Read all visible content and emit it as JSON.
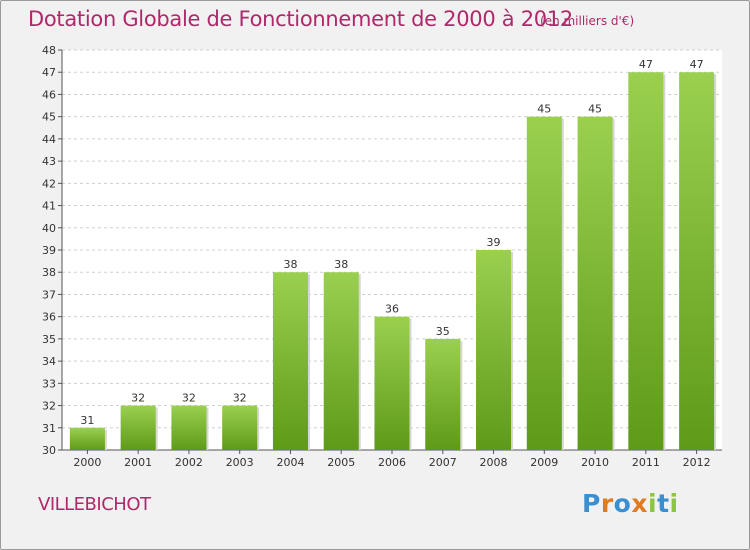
{
  "chart_data": {
    "type": "bar",
    "title": "Dotation Globale de Fonctionnement de 2000 à 2012",
    "subtitle": "(en milliers d'€)",
    "categories": [
      "2000",
      "2001",
      "2002",
      "2003",
      "2004",
      "2005",
      "2006",
      "2007",
      "2008",
      "2009",
      "2010",
      "2011",
      "2012"
    ],
    "values": [
      31,
      32,
      32,
      32,
      38,
      38,
      36,
      35,
      39,
      45,
      45,
      47,
      47
    ],
    "ylim": [
      30,
      48
    ],
    "yticks": [
      30,
      31,
      32,
      33,
      34,
      35,
      36,
      37,
      38,
      39,
      40,
      41,
      42,
      43,
      44,
      45,
      46,
      47,
      48
    ],
    "grid": true,
    "bar_color_top": "#9bd04f",
    "bar_color_bottom": "#5e9a18"
  },
  "commune": "VILLEBICHOT",
  "logo": {
    "letters": [
      "P",
      "r",
      "o",
      "x",
      "i",
      "t",
      "i"
    ],
    "colors": [
      "#3a8fd1",
      "#e07b22",
      "#3a8fd1",
      "#e07b22",
      "#8cc63f",
      "#3a8fd1",
      "#8cc63f"
    ]
  },
  "colors": {
    "accent": "#b0286a",
    "frame_bg": "#f1f1f1"
  }
}
